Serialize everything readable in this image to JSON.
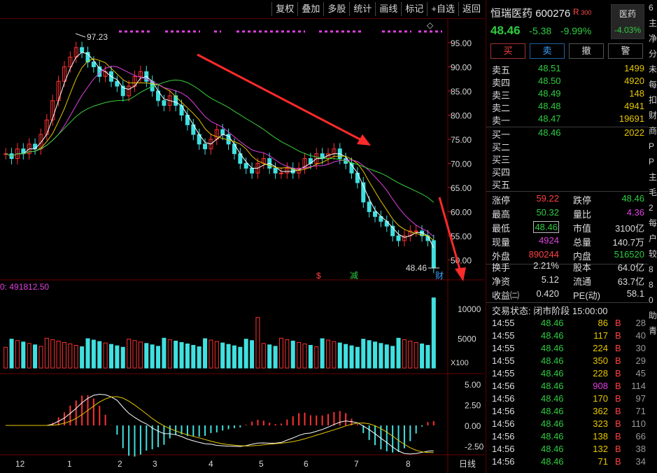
{
  "toolbar": {
    "buttons": [
      "复权",
      "叠加",
      "多股",
      "统计",
      "画线",
      "标记",
      "+自选",
      "返回"
    ]
  },
  "stock": {
    "name": "恒瑞医药",
    "code": "600276",
    "badge": "R",
    "badge_sup": "300",
    "sector": "医药",
    "sector_change": "-4.03%",
    "price": "48.46",
    "change": "-5.38",
    "change_pct": "-9.99%"
  },
  "trade_buttons": [
    "买",
    "卖",
    "撤",
    "警"
  ],
  "order_book": {
    "asks": [
      {
        "label": "卖五",
        "price": "48.51",
        "vol": "1499"
      },
      {
        "label": "卖四",
        "price": "48.50",
        "vol": "4920"
      },
      {
        "label": "卖三",
        "price": "48.49",
        "vol": "148"
      },
      {
        "label": "卖二",
        "price": "48.48",
        "vol": "4941"
      },
      {
        "label": "卖一",
        "price": "48.47",
        "vol": "19691"
      }
    ],
    "bids": [
      {
        "label": "买一",
        "price": "48.46",
        "vol": "2022"
      },
      {
        "label": "买二",
        "price": "",
        "vol": ""
      },
      {
        "label": "买三",
        "price": "",
        "vol": ""
      },
      {
        "label": "买四",
        "price": "",
        "vol": ""
      },
      {
        "label": "买五",
        "price": "",
        "vol": ""
      }
    ]
  },
  "stats": [
    {
      "k1": "涨停",
      "v1": "59.22",
      "c1": "red",
      "k2": "跌停",
      "v2": "48.46",
      "c2": "grn"
    },
    {
      "k1": "最高",
      "v1": "50.32",
      "c1": "grn",
      "k2": "量比",
      "v2": "4.36",
      "c2": "mag"
    },
    {
      "k1": "最低",
      "v1": "48.46",
      "c1": "grn",
      "k2": "市值",
      "v2": "3100亿",
      "c2": "wht"
    },
    {
      "k1": "现量",
      "v1": "4924",
      "c1": "mag",
      "k2": "总量",
      "v2": "140.7万",
      "c2": "wht"
    },
    {
      "k1": "外盘",
      "v1": "890244",
      "c1": "red",
      "k2": "内盘",
      "v2": "516520",
      "c2": "grn"
    },
    {
      "k1": "换手",
      "v1": "2.21%",
      "c1": "wht",
      "k2": "股本",
      "v2": "64.0亿",
      "c2": "wht"
    },
    {
      "k1": "净资",
      "v1": "5.12",
      "c1": "wht",
      "k2": "流通",
      "v2": "63.7亿",
      "c2": "wht"
    },
    {
      "k1": "收益㈡",
      "v1": "0.420",
      "c1": "wht",
      "k2": "PE(动)",
      "v2": "58.1",
      "c2": "wht"
    }
  ],
  "trade_status": "交易状态: 闭市阶段 15:00:00",
  "ticks": [
    {
      "t": "14:55",
      "p": "48.46",
      "v": "86",
      "b": "B",
      "n": "28",
      "vc": "yel"
    },
    {
      "t": "14:55",
      "p": "48.46",
      "v": "117",
      "b": "B",
      "n": "40",
      "vc": "yel"
    },
    {
      "t": "14:55",
      "p": "48.46",
      "v": "224",
      "b": "B",
      "n": "30",
      "vc": "yel"
    },
    {
      "t": "14:55",
      "p": "48.46",
      "v": "350",
      "b": "B",
      "n": "29",
      "vc": "yel"
    },
    {
      "t": "14:55",
      "p": "48.46",
      "v": "228",
      "b": "B",
      "n": "45",
      "vc": "yel"
    },
    {
      "t": "14:56",
      "p": "48.46",
      "v": "908",
      "b": "B",
      "n": "114",
      "vc": "mag"
    },
    {
      "t": "14:56",
      "p": "48.46",
      "v": "170",
      "b": "B",
      "n": "97",
      "vc": "yel"
    },
    {
      "t": "14:56",
      "p": "48.46",
      "v": "362",
      "b": "B",
      "n": "71",
      "vc": "yel"
    },
    {
      "t": "14:56",
      "p": "48.46",
      "v": "323",
      "b": "B",
      "n": "110",
      "vc": "yel"
    },
    {
      "t": "14:56",
      "p": "48.46",
      "v": "138",
      "b": "B",
      "n": "66",
      "vc": "yel"
    },
    {
      "t": "14:56",
      "p": "48.46",
      "v": "132",
      "b": "B",
      "n": "38",
      "vc": "yel"
    },
    {
      "t": "14:56",
      "p": "48.46",
      "v": "71",
      "b": "B",
      "n": "34",
      "vc": "yel"
    }
  ],
  "edge_text": [
    "6",
    "主",
    "净",
    "分",
    "未",
    "每",
    "扣",
    "财",
    "商",
    "P",
    "P",
    "主",
    "毛",
    "2",
    "每",
    "户",
    "较",
    "8",
    "8",
    "0",
    "助",
    "青"
  ],
  "chart_data": {
    "type": "candlestick",
    "price_axis": {
      "ticks": [
        "95.00",
        "90.00",
        "85.00",
        "80.00",
        "75.00",
        "70.00",
        "65.00",
        "60.00",
        "55.00",
        "50.00"
      ],
      "ylim": [
        46,
        100
      ]
    },
    "volume_axis": {
      "ticks": [
        "10000",
        "5000"
      ],
      "unit": "X100",
      "header": "0: 491812.50"
    },
    "macd_axis": {
      "ticks": [
        "5.00",
        "2.50",
        "0.00",
        "-2.50"
      ]
    },
    "x_labels": [
      "12",
      "1",
      "2",
      "3",
      "4",
      "5",
      "6",
      "7",
      "8"
    ],
    "period_label": "日线",
    "annotations": {
      "high": "97.23",
      "last": "48.46",
      "marker1": "$",
      "marker2": "减",
      "marker3": "财",
      "diamond": "◇"
    },
    "closes": [
      72,
      71,
      73,
      72,
      74,
      73,
      76,
      79,
      83,
      87,
      90,
      92,
      94,
      93,
      91,
      90,
      88,
      89,
      87,
      86,
      84,
      86,
      88,
      89,
      87,
      85,
      83,
      82,
      84,
      82,
      80,
      78,
      76,
      74,
      73,
      75,
      77,
      76,
      74,
      72,
      70,
      69,
      68,
      70,
      71,
      69,
      68,
      68,
      69,
      68,
      69,
      71,
      70,
      72,
      71,
      72,
      73,
      71,
      70,
      68,
      66,
      62,
      60,
      59,
      58,
      57,
      55,
      54,
      55,
      56,
      56,
      55,
      54,
      48.46
    ]
  },
  "colors": {
    "up": "#ff3030",
    "down": "#40e0e0",
    "ma1": "#ffffff",
    "ma2": "#e6c700",
    "ma3": "#e040e0",
    "ma4": "#3ad03a",
    "arrow": "#ff2a2a"
  }
}
